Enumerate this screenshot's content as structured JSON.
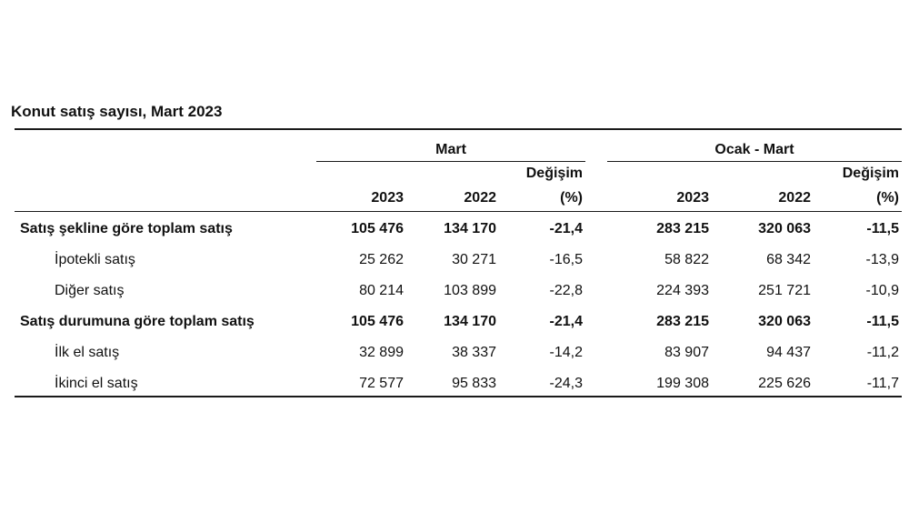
{
  "title": "Konut satış sayısı, Mart 2023",
  "groups": [
    {
      "label": "Mart"
    },
    {
      "label": "Ocak - Mart"
    }
  ],
  "subheaders": {
    "year_2023": "2023",
    "year_2022": "2022",
    "change_line1": "Değişim",
    "change_line2": "(%)"
  },
  "rows": [
    {
      "label": "Satış şekline göre toplam satış",
      "bold": true,
      "values": [
        "105 476",
        "134 170",
        "-21,4",
        "283 215",
        "320 063",
        "-11,5"
      ]
    },
    {
      "label": "İpotekli satış",
      "bold": false,
      "values": [
        "25 262",
        "30 271",
        "-16,5",
        "58 822",
        "68 342",
        "-13,9"
      ]
    },
    {
      "label": "Diğer satış",
      "bold": false,
      "values": [
        "80 214",
        "103 899",
        "-22,8",
        "224 393",
        "251 721",
        "-10,9"
      ]
    },
    {
      "label": "Satış durumuna göre toplam satış",
      "bold": true,
      "values": [
        "105 476",
        "134 170",
        "-21,4",
        "283 215",
        "320 063",
        "-11,5"
      ]
    },
    {
      "label": "İlk el satış",
      "bold": false,
      "values": [
        "32 899",
        "38 337",
        "-14,2",
        "83 907",
        "94 437",
        "-11,2"
      ]
    },
    {
      "label": "İkinci el satış",
      "bold": false,
      "values": [
        "72 577",
        "95 833",
        "-24,3",
        "199 308",
        "225 626",
        "-11,7"
      ]
    }
  ]
}
